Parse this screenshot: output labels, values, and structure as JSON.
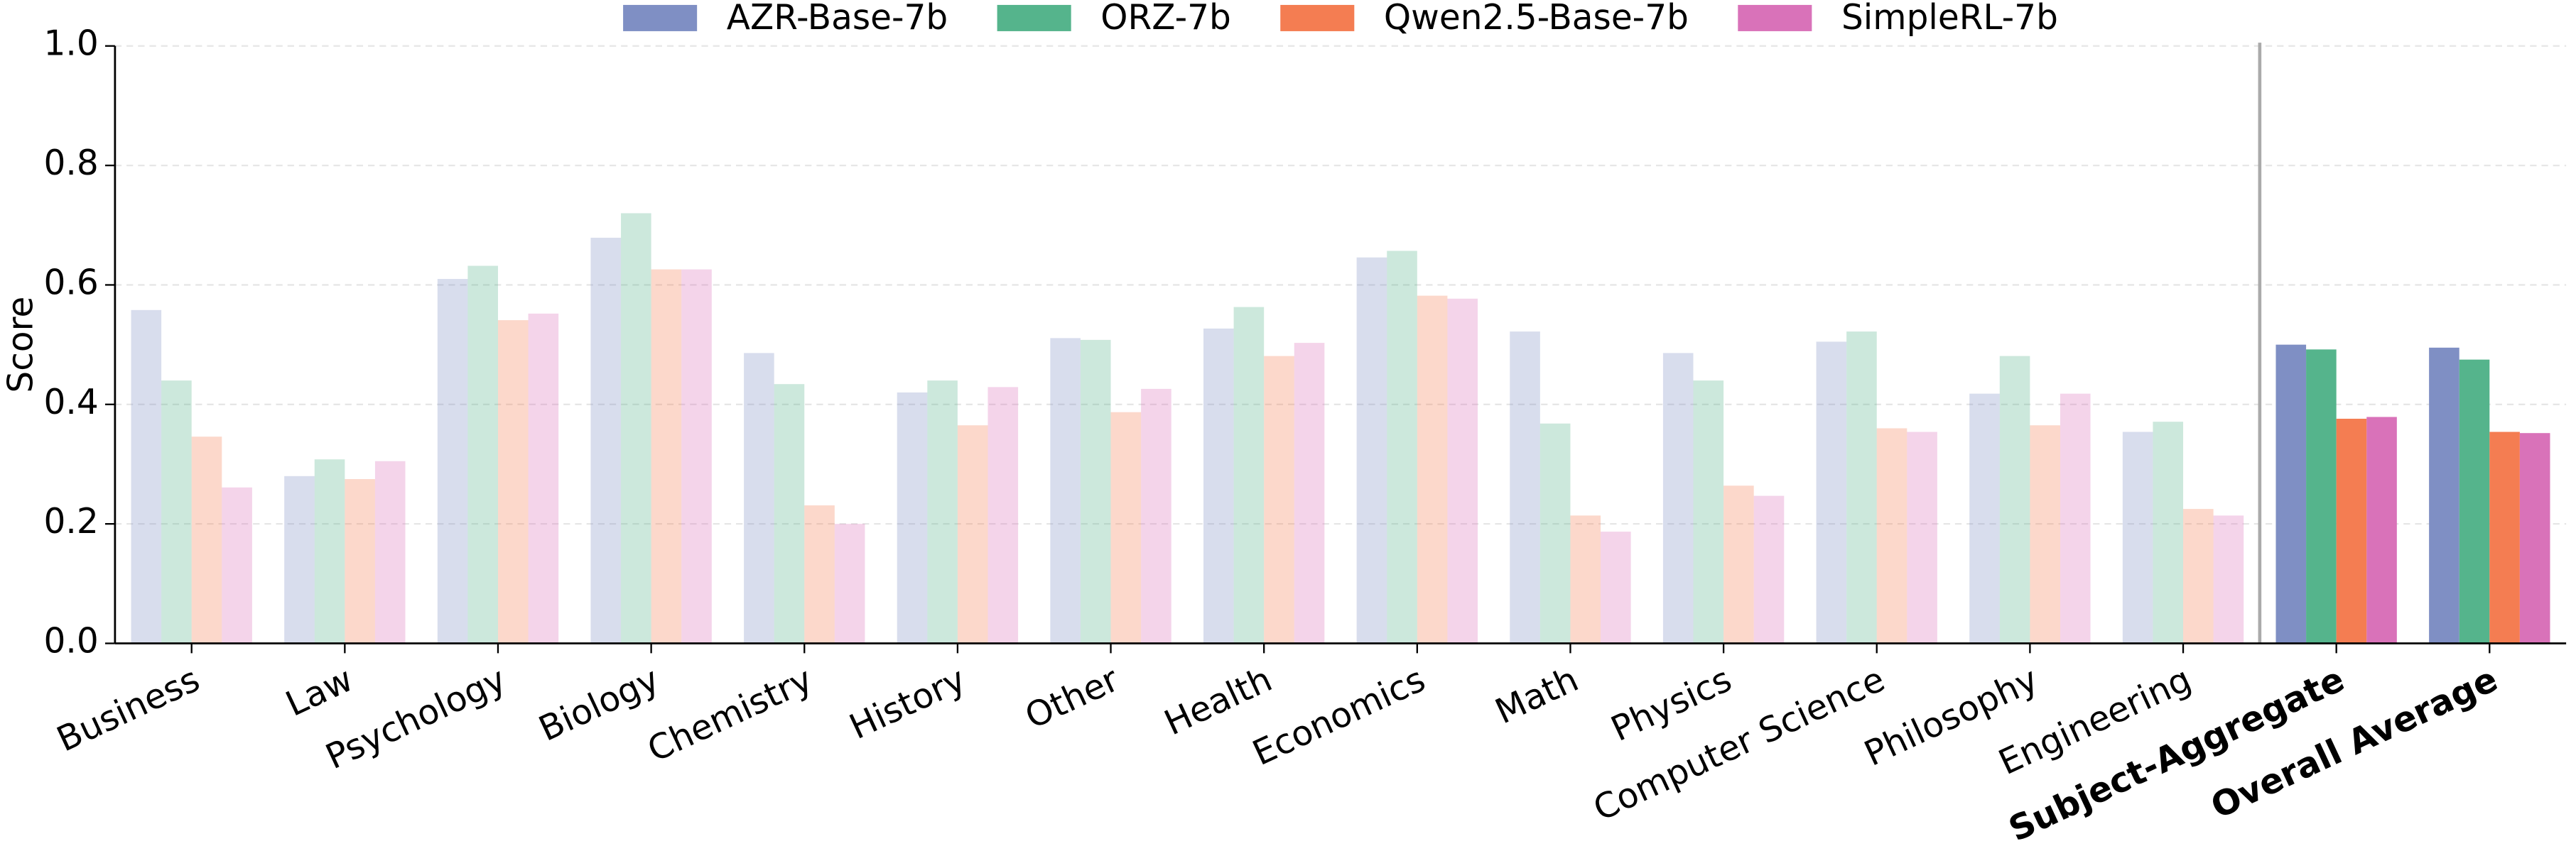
{
  "chart_data": {
    "type": "bar",
    "y_label": "Score",
    "categories": [
      "Business",
      "Law",
      "Psychology",
      "Biology",
      "Chemistry",
      "History",
      "Other",
      "Health",
      "Economics",
      "Math",
      "Physics",
      "Computer Science",
      "Philosophy",
      "Engineering",
      "Subject-Aggregate",
      "Overall Average"
    ],
    "series": [
      {
        "name": "AZR-Base-7b",
        "color": "#7f8fc4",
        "values": [
          0.558,
          0.28,
          0.61,
          0.679,
          0.486,
          0.42,
          0.511,
          0.527,
          0.646,
          0.522,
          0.486,
          0.505,
          0.418,
          0.354,
          0.5,
          0.495
        ]
      },
      {
        "name": "ORZ-7b",
        "color": "#55b48c",
        "values": [
          0.44,
          0.308,
          0.632,
          0.72,
          0.434,
          0.44,
          0.508,
          0.563,
          0.657,
          0.368,
          0.44,
          0.522,
          0.481,
          0.371,
          0.492,
          0.475
        ]
      },
      {
        "name": "Qwen2.5-Base-7b",
        "color": "#f47d52",
        "values": [
          0.346,
          0.275,
          0.541,
          0.626,
          0.231,
          0.365,
          0.387,
          0.481,
          0.582,
          0.214,
          0.264,
          0.36,
          0.365,
          0.225,
          0.376,
          0.354
        ]
      },
      {
        "name": "SimpleRL-7b",
        "color": "#d972b9",
        "values": [
          0.261,
          0.305,
          0.552,
          0.626,
          0.2,
          0.429,
          0.426,
          0.503,
          0.577,
          0.187,
          0.247,
          0.354,
          0.418,
          0.214,
          0.379,
          0.352
        ]
      }
    ],
    "ylim": [
      0,
      1
    ],
    "yticks": [
      {
        "value": 0,
        "label": "0.0"
      },
      {
        "value": 0.2,
        "label": "0.2"
      },
      {
        "value": 0.4,
        "label": "0.4"
      },
      {
        "value": 0.6,
        "label": "0.6"
      },
      {
        "value": 0.8,
        "label": "0.8"
      },
      {
        "value": 1,
        "label": "1.0"
      }
    ],
    "grid": true,
    "legend": "upper center"
  }
}
